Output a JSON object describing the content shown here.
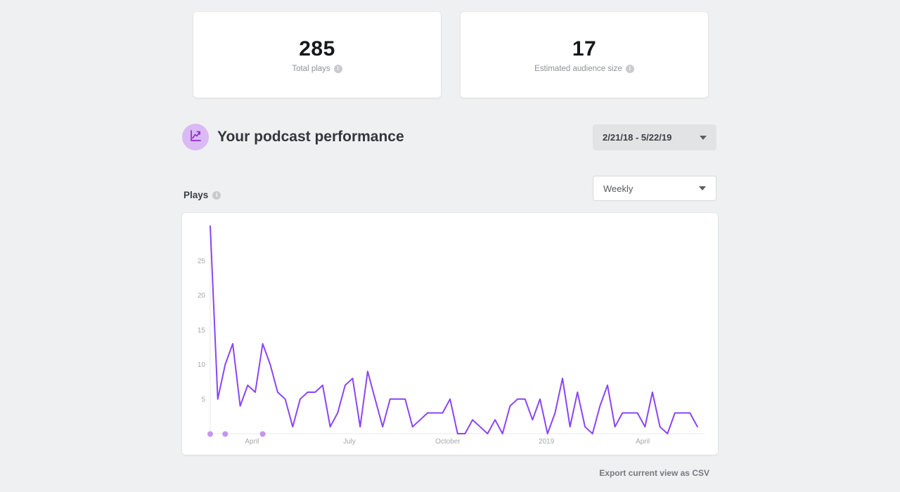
{
  "page": {
    "background": "#eff0f2"
  },
  "stats": {
    "cards": [
      {
        "value": "285",
        "label": "Total plays",
        "icon": "info-icon"
      },
      {
        "value": "17",
        "label": "Estimated audience size",
        "icon": "info-icon"
      }
    ]
  },
  "performance": {
    "icon": "line-chart-icon",
    "title": "Your podcast performance",
    "date_range_value": "2/21/18 - 5/22/19",
    "date_range_icon": "caret-down-icon",
    "metric_label": "Plays",
    "metric_info_icon": "info-icon",
    "interval_value": "Weekly",
    "interval_icon": "caret-down-icon"
  },
  "icons": {
    "info_glyph": "i"
  },
  "chart_data": {
    "type": "line",
    "title": "Plays",
    "interval": "weekly",
    "x_start_label": "2/21/18",
    "x_end_label": "5/22/19",
    "values": [
      30,
      5,
      10,
      13,
      4,
      7,
      6,
      13,
      10,
      6,
      5,
      1,
      5,
      6,
      6,
      7,
      1,
      3,
      7,
      8,
      1,
      9,
      5,
      1,
      5,
      5,
      5,
      1,
      2,
      3,
      3,
      3,
      5,
      0,
      0,
      2,
      1,
      0,
      2,
      0,
      4,
      5,
      5,
      2,
      5,
      0,
      3,
      8,
      1,
      6,
      1,
      0,
      4,
      7,
      1,
      3,
      3,
      3,
      1,
      6,
      1,
      0,
      3,
      3,
      3,
      1
    ],
    "total_plays": 285,
    "y_ticks": [
      5,
      10,
      15,
      20,
      25
    ],
    "ylim": [
      0,
      30
    ],
    "x_axis_labels": [
      {
        "label": "April",
        "week": 5.57
      },
      {
        "label": "July",
        "week": 18.57
      },
      {
        "label": "October",
        "week": 31.7
      },
      {
        "label": "2019",
        "week": 44.86
      },
      {
        "label": "April",
        "week": 57.7
      }
    ],
    "episode_marker_weeks": [
      0,
      2,
      7
    ],
    "grid": false,
    "legend": false,
    "line_color": "#8a45f5",
    "marker_color": "#c496ee",
    "axis_color": "#e9eaeb",
    "tick_color": "#a4a7ab"
  },
  "footer": {
    "export_label": "Export current view as CSV"
  }
}
